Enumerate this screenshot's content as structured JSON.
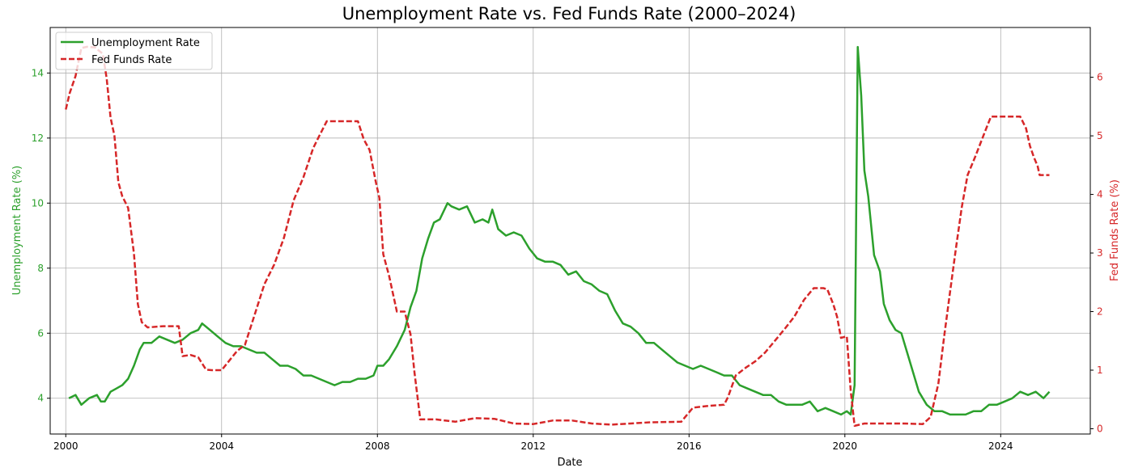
{
  "chart_data": {
    "type": "line",
    "title": "Unemployment Rate vs. Fed Funds Rate (2000–2024)",
    "xlabel": "Date",
    "ylabel_left": "Unemployment Rate (%)",
    "ylabel_right": "Fed Funds Rate (%)",
    "xlim": [
      1999.6,
      2026.3
    ],
    "ylim_left": [
      2.9,
      15.4
    ],
    "ylim_right": [
      -0.09,
      6.85
    ],
    "x_ticks": [
      2000,
      2004,
      2008,
      2012,
      2016,
      2020,
      2024
    ],
    "x_tick_labels": [
      "2000",
      "2004",
      "2008",
      "2012",
      "2016",
      "2020",
      "2024"
    ],
    "y_left_ticks": [
      4,
      6,
      8,
      10,
      12,
      14
    ],
    "y_left_tick_labels": [
      "4",
      "6",
      "8",
      "10",
      "12",
      "14"
    ],
    "y_right_ticks": [
      0,
      1,
      2,
      3,
      4,
      5,
      6
    ],
    "y_right_tick_labels": [
      "0",
      "1",
      "2",
      "3",
      "4",
      "5",
      "6"
    ],
    "grid": true,
    "legend_position": "top-left",
    "colors": {
      "unemployment": "#2ca02c",
      "fedfunds": "#d62728"
    },
    "series": [
      {
        "name": "Unemployment Rate",
        "axis": "left",
        "style": "solid",
        "x": [
          2000.08,
          2000.25,
          2000.4,
          2000.6,
          2000.8,
          2000.9,
          2001.0,
          2001.15,
          2001.3,
          2001.45,
          2001.6,
          2001.75,
          2001.9,
          2002.0,
          2002.2,
          2002.4,
          2002.6,
          2002.8,
          2003.0,
          2003.2,
          2003.4,
          2003.5,
          2003.7,
          2003.9,
          2004.1,
          2004.3,
          2004.5,
          2004.7,
          2004.9,
          2005.1,
          2005.3,
          2005.5,
          2005.7,
          2005.9,
          2006.1,
          2006.3,
          2006.5,
          2006.7,
          2006.9,
          2007.1,
          2007.3,
          2007.5,
          2007.7,
          2007.9,
          2008.0,
          2008.15,
          2008.3,
          2008.5,
          2008.7,
          2008.85,
          2009.0,
          2009.15,
          2009.3,
          2009.45,
          2009.6,
          2009.8,
          2009.9,
          2010.1,
          2010.3,
          2010.5,
          2010.7,
          2010.85,
          2010.95,
          2011.1,
          2011.3,
          2011.5,
          2011.7,
          2011.9,
          2012.1,
          2012.3,
          2012.5,
          2012.7,
          2012.9,
          2013.1,
          2013.3,
          2013.5,
          2013.7,
          2013.9,
          2014.1,
          2014.3,
          2014.5,
          2014.7,
          2014.9,
          2015.1,
          2015.3,
          2015.5,
          2015.7,
          2015.9,
          2016.1,
          2016.3,
          2016.5,
          2016.7,
          2016.9,
          2017.1,
          2017.3,
          2017.5,
          2017.7,
          2017.9,
          2018.1,
          2018.3,
          2018.5,
          2018.7,
          2018.9,
          2019.1,
          2019.3,
          2019.5,
          2019.7,
          2019.9,
          2020.05,
          2020.15,
          2020.25,
          2020.33,
          2020.42,
          2020.5,
          2020.6,
          2020.75,
          2020.9,
          2021.0,
          2021.15,
          2021.3,
          2021.45,
          2021.6,
          2021.75,
          2021.9,
          2022.1,
          2022.3,
          2022.5,
          2022.7,
          2022.9,
          2023.1,
          2023.3,
          2023.5,
          2023.7,
          2023.9,
          2024.1,
          2024.3,
          2024.5,
          2024.7,
          2024.9,
          2025.1,
          2025.25
        ],
        "values": [
          4.0,
          4.1,
          3.8,
          4.0,
          4.1,
          3.9,
          3.9,
          4.2,
          4.3,
          4.4,
          4.6,
          5.0,
          5.5,
          5.7,
          5.7,
          5.9,
          5.8,
          5.7,
          5.8,
          6.0,
          6.1,
          6.3,
          6.1,
          5.9,
          5.7,
          5.6,
          5.6,
          5.5,
          5.4,
          5.4,
          5.2,
          5.0,
          5.0,
          4.9,
          4.7,
          4.7,
          4.6,
          4.5,
          4.4,
          4.5,
          4.5,
          4.6,
          4.6,
          4.7,
          5.0,
          5.0,
          5.2,
          5.6,
          6.1,
          6.8,
          7.3,
          8.3,
          8.9,
          9.4,
          9.5,
          10.0,
          9.9,
          9.8,
          9.9,
          9.4,
          9.5,
          9.4,
          9.8,
          9.2,
          9.0,
          9.1,
          9.0,
          8.6,
          8.3,
          8.2,
          8.2,
          8.1,
          7.8,
          7.9,
          7.6,
          7.5,
          7.3,
          7.2,
          6.7,
          6.3,
          6.2,
          6.0,
          5.7,
          5.7,
          5.5,
          5.3,
          5.1,
          5.0,
          4.9,
          5.0,
          4.9,
          4.8,
          4.7,
          4.7,
          4.4,
          4.3,
          4.2,
          4.1,
          4.1,
          3.9,
          3.8,
          3.8,
          3.8,
          3.9,
          3.6,
          3.7,
          3.6,
          3.5,
          3.6,
          3.5,
          4.4,
          14.8,
          13.3,
          11.0,
          10.2,
          8.4,
          7.9,
          6.9,
          6.4,
          6.1,
          6.0,
          5.4,
          4.8,
          4.2,
          3.8,
          3.6,
          3.6,
          3.5,
          3.5,
          3.5,
          3.6,
          3.6,
          3.8,
          3.8,
          3.9,
          4.0,
          4.2,
          4.1,
          4.2,
          4.0,
          4.2
        ]
      },
      {
        "name": "Fed Funds Rate",
        "axis": "right",
        "style": "dashed",
        "x": [
          2000.0,
          2000.1,
          2000.25,
          2000.4,
          2000.55,
          2000.75,
          2000.95,
          2001.05,
          2001.15,
          2001.25,
          2001.35,
          2001.45,
          2001.6,
          2001.75,
          2001.85,
          2001.95,
          2002.1,
          2002.5,
          2002.9,
          2003.0,
          2003.2,
          2003.4,
          2003.6,
          2003.75,
          2004.0,
          2004.4,
          2004.6,
          2004.85,
          2005.1,
          2005.35,
          2005.6,
          2005.85,
          2006.1,
          2006.35,
          2006.5,
          2006.7,
          2007.0,
          2007.5,
          2007.65,
          2007.8,
          2007.95,
          2008.05,
          2008.15,
          2008.3,
          2008.5,
          2008.7,
          2008.85,
          2008.95,
          2009.1,
          2009.5,
          2010.0,
          2010.5,
          2011.0,
          2011.5,
          2012.0,
          2012.5,
          2013.0,
          2013.5,
          2014.0,
          2014.5,
          2015.0,
          2015.8,
          2015.95,
          2016.1,
          2016.5,
          2016.9,
          2017.0,
          2017.2,
          2017.45,
          2017.7,
          2017.95,
          2018.2,
          2018.45,
          2018.7,
          2018.95,
          2019.2,
          2019.45,
          2019.55,
          2019.7,
          2019.8,
          2019.9,
          2020.05,
          2020.15,
          2020.25,
          2020.5,
          2021.0,
          2021.5,
          2022.0,
          2022.2,
          2022.4,
          2022.55,
          2022.7,
          2022.85,
          2023.0,
          2023.15,
          2023.35,
          2023.6,
          2023.75,
          2024.0,
          2024.5,
          2024.65,
          2024.75,
          2024.85,
          2024.95,
          2025.0,
          2025.25
        ],
        "values": [
          5.45,
          5.73,
          6.02,
          6.5,
          6.52,
          6.51,
          6.4,
          5.98,
          5.31,
          5.0,
          4.21,
          3.97,
          3.77,
          2.99,
          2.13,
          1.82,
          1.73,
          1.75,
          1.75,
          1.24,
          1.26,
          1.22,
          1.01,
          1.0,
          1.0,
          1.33,
          1.43,
          1.95,
          2.47,
          2.8,
          3.26,
          3.9,
          4.29,
          4.79,
          4.99,
          5.25,
          5.25,
          5.25,
          4.94,
          4.76,
          4.24,
          3.94,
          2.98,
          2.61,
          2.0,
          2.0,
          1.61,
          0.97,
          0.16,
          0.16,
          0.12,
          0.18,
          0.17,
          0.09,
          0.08,
          0.14,
          0.14,
          0.09,
          0.07,
          0.09,
          0.11,
          0.12,
          0.24,
          0.36,
          0.39,
          0.41,
          0.54,
          0.91,
          1.04,
          1.15,
          1.3,
          1.5,
          1.7,
          1.91,
          2.2,
          2.4,
          2.4,
          2.38,
          2.13,
          1.91,
          1.55,
          1.58,
          0.65,
          0.05,
          0.09,
          0.09,
          0.09,
          0.08,
          0.2,
          0.77,
          1.58,
          2.33,
          3.08,
          3.78,
          4.33,
          4.65,
          5.08,
          5.33,
          5.33,
          5.33,
          5.13,
          4.83,
          4.64,
          4.48,
          4.33,
          4.33
        ]
      }
    ]
  }
}
